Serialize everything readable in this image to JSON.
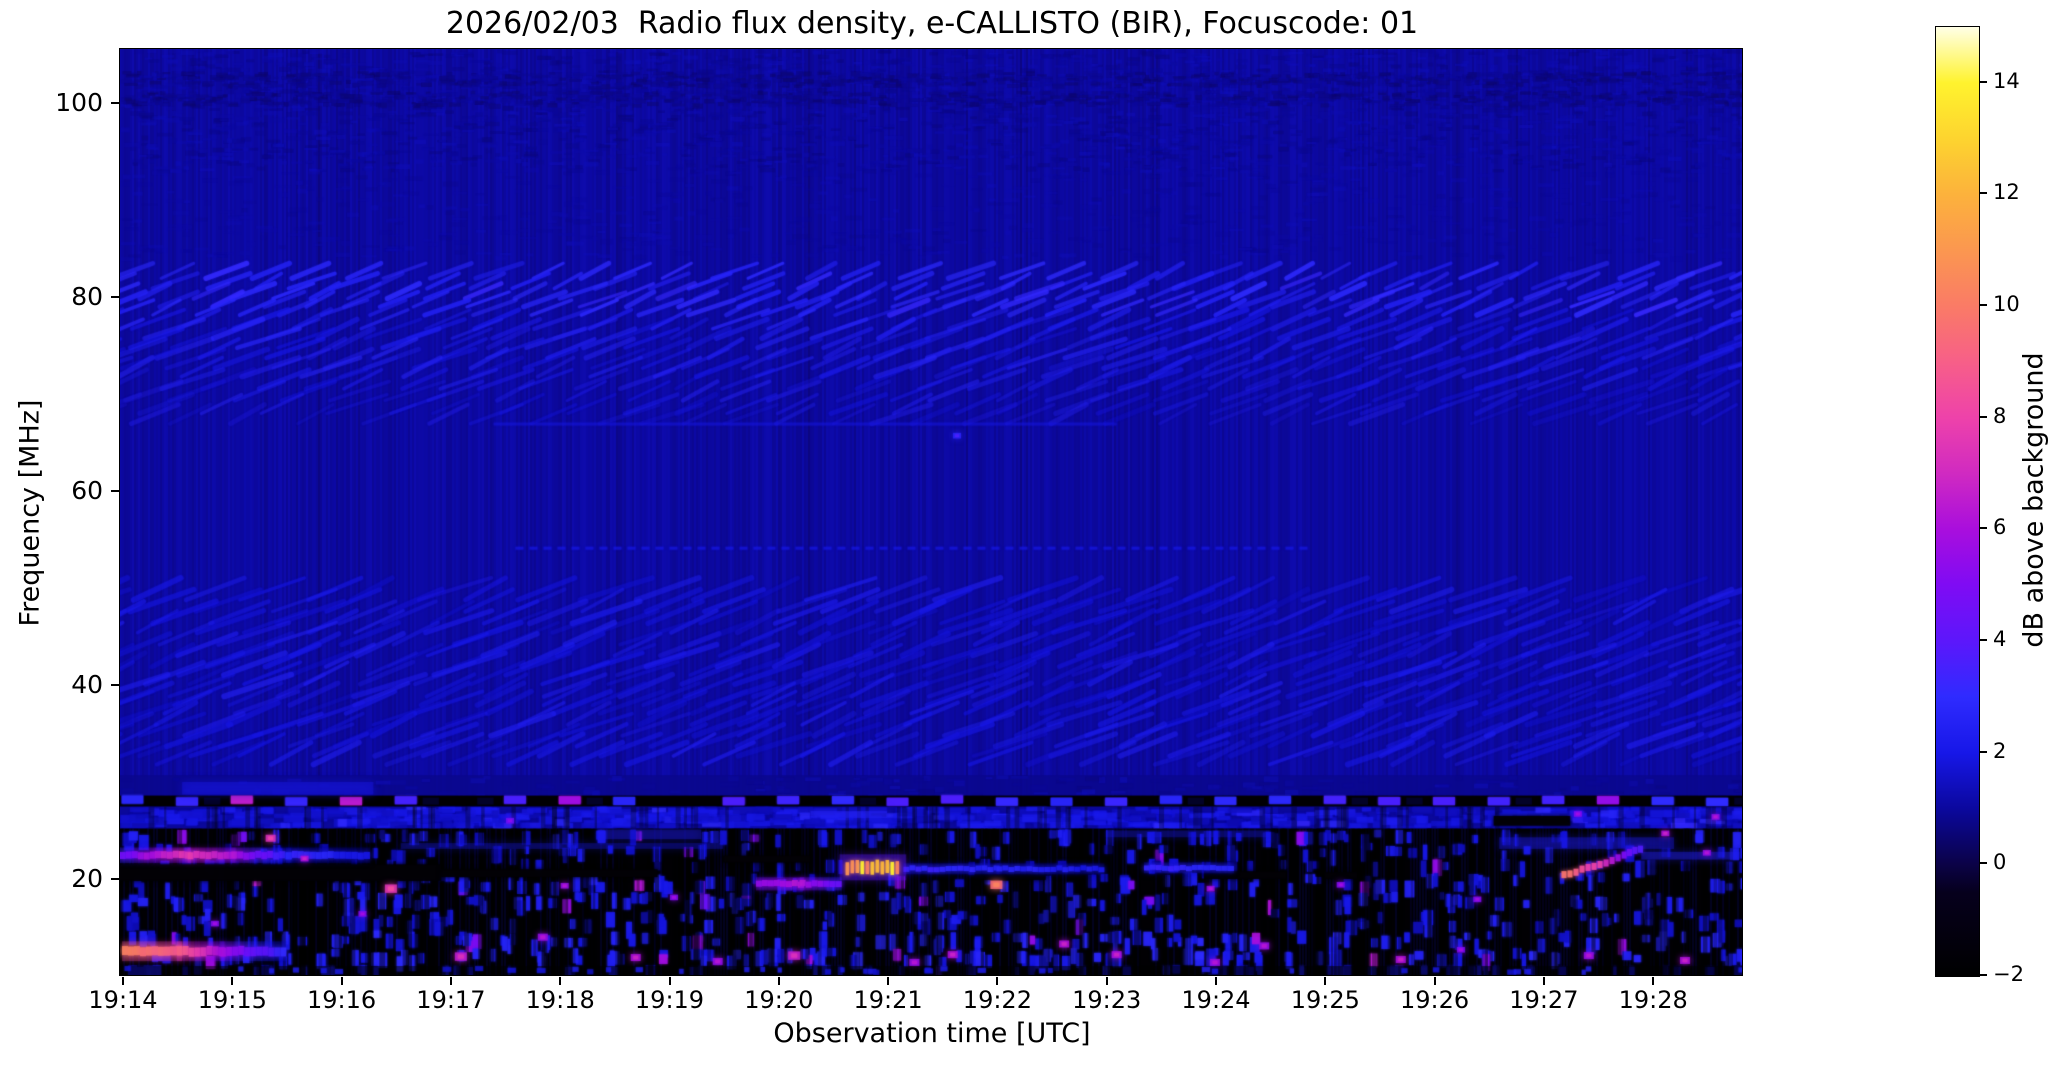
{
  "chart_data": {
    "type": "heatmap",
    "subtype": "radio-spectrogram",
    "title": "2026/02/03  Radio flux density, e-CALLISTO (BIR), Focuscode: 01",
    "xlabel": "Observation time [UTC]",
    "ylabel": "Frequency [MHz]",
    "colorbar_label": "dB above background",
    "time_tick_labels": [
      "19:14",
      "19:15",
      "19:16",
      "19:17",
      "19:18",
      "19:19",
      "19:20",
      "19:21",
      "19:22",
      "19:23",
      "19:24",
      "19:25",
      "19:26",
      "19:27",
      "19:28"
    ],
    "time_start": "19:14",
    "time_end": "19:28:50",
    "freq_ticks": [
      100,
      80,
      60,
      40,
      20
    ],
    "freq_range_mhz": [
      10,
      105.5
    ],
    "colorbar_ticks": [
      14,
      12,
      10,
      8,
      6,
      4,
      2,
      0,
      -2
    ],
    "colorbar_range_db": [
      -2,
      15
    ],
    "grid": false,
    "legend": "colorbar-right",
    "palette": [
      {
        "v": -2.0,
        "c": "#000000"
      },
      {
        "v": -0.5,
        "c": "#06001d"
      },
      {
        "v": 0.0,
        "c": "#0b0247"
      },
      {
        "v": 1.0,
        "c": "#0b089e"
      },
      {
        "v": 2.0,
        "c": "#1717e8"
      },
      {
        "v": 3.0,
        "c": "#2f2bff"
      },
      {
        "v": 4.0,
        "c": "#5c17fb"
      },
      {
        "v": 5.0,
        "c": "#7f0bf4"
      },
      {
        "v": 6.0,
        "c": "#a90edd"
      },
      {
        "v": 7.0,
        "c": "#d02ac1"
      },
      {
        "v": 8.0,
        "c": "#ee42aa"
      },
      {
        "v": 9.0,
        "c": "#f75f88"
      },
      {
        "v": 10.0,
        "c": "#fa7b66"
      },
      {
        "v": 11.0,
        "c": "#fb9750"
      },
      {
        "v": 12.0,
        "c": "#fcb23c"
      },
      {
        "v": 13.0,
        "c": "#fdd42f"
      },
      {
        "v": 14.0,
        "c": "#fff32e"
      },
      {
        "v": 15.0,
        "c": "#ffffe6"
      }
    ],
    "background_level_db": 1.05,
    "features": {
      "top_noise_strips_mhz": [
        [
          101.8,
          103.2
        ],
        [
          99.8,
          101.2
        ]
      ],
      "diag_bands": [
        {
          "f0": 77.6,
          "f1": 82.6,
          "db": 2.8,
          "alpha": 0.5,
          "len": 36,
          "rise": 15,
          "lw": 4.0,
          "spacing": 46,
          "fade": false
        },
        {
          "f0": 67.5,
          "f1": 77.6,
          "db": 2.4,
          "alpha": 0.38,
          "len": 48,
          "rise": 19,
          "lw": 4.2,
          "spacing": 54,
          "fade": true
        },
        {
          "f0": 32.5,
          "f1": 49.8,
          "db": 2.1,
          "alpha": 0.3,
          "len": 56,
          "rise": 22,
          "lw": 4.5,
          "spacing": 60,
          "fade": false
        }
      ],
      "hlines": [
        {
          "f": 66.8,
          "t0": 3.4,
          "t1": 9.1,
          "db": 1.9,
          "dotted": false
        },
        {
          "f": 54.0,
          "t0": 3.6,
          "t1": 10.9,
          "db": 2.1,
          "dotted": true
        }
      ],
      "dark_band": {
        "f0": 28.5,
        "f1": 30.6,
        "db": 0.8
      },
      "checker_line": {
        "f0": 27.35,
        "f1": 28.5,
        "cell_minutes": 0.25,
        "db_hi": 3.0,
        "db_lo": -1.85,
        "pink_prob": 0.07,
        "pink_db": 5.5
      },
      "mottle_band": {
        "f0": 25.1,
        "f1": 27.35,
        "db": 1.6
      },
      "noise_floor": {
        "f0": 10.0,
        "f1": 25.1,
        "db": -1.85
      },
      "dash_rows": [
        {
          "f0": 23.6,
          "f1": 25.0,
          "d": 0.4,
          "db": 1.9
        },
        {
          "f0": 22.0,
          "f1": 23.6,
          "d": 0.28,
          "db": 1.7
        },
        {
          "f0": 20.8,
          "f1": 22.0,
          "d": 0.22,
          "db": 1.6
        },
        {
          "f0": 18.6,
          "f1": 20.6,
          "d": 0.45,
          "db": 1.9
        },
        {
          "f0": 16.8,
          "f1": 18.6,
          "d": 0.5,
          "db": 2.1
        },
        {
          "f0": 14.6,
          "f1": 16.8,
          "d": 0.45,
          "db": 1.9
        },
        {
          "f0": 12.8,
          "f1": 14.6,
          "d": 0.52,
          "db": 2.2
        },
        {
          "f0": 11.0,
          "f1": 12.8,
          "d": 0.55,
          "db": 2.3
        },
        {
          "f0": 10.0,
          "f1": 11.0,
          "d": 0.3,
          "db": 1.6
        }
      ],
      "patches": [
        {
          "t0": 0.55,
          "t1": 2.3,
          "f0": 28.6,
          "f1": 29.9,
          "db": 1.8,
          "alpha": 0.5
        },
        {
          "t0": 2.55,
          "t1": 5.5,
          "f0": 23.0,
          "f1": 23.6,
          "db": 2.0,
          "alpha": 0.3
        },
        {
          "t0": 4.35,
          "t1": 5.3,
          "f0": 24.0,
          "f1": 25.0,
          "db": 2.2,
          "alpha": 0.35
        },
        {
          "t0": 6.3,
          "t1": 7.0,
          "f0": 26.2,
          "f1": 26.9,
          "db": 2.6,
          "alpha": 0.5
        },
        {
          "t0": 9.0,
          "t1": 10.5,
          "f0": 24.2,
          "f1": 24.9,
          "db": 2.0,
          "alpha": 0.3
        },
        {
          "t0": 12.6,
          "t1": 14.2,
          "f0": 23.0,
          "f1": 24.2,
          "db": 2.2,
          "alpha": 0.35
        },
        {
          "t0": 13.9,
          "t1": 14.8,
          "f0": 21.9,
          "f1": 22.7,
          "db": 2.4,
          "alpha": 0.4
        }
      ],
      "blackouts": [
        {
          "t0": -0.02,
          "t1": 2.92,
          "f0": 19.7,
          "f1": 21.4
        },
        {
          "t0": 2.92,
          "t1": 4.9,
          "f0": 20.1,
          "f1": 20.9
        },
        {
          "t0": 5.5,
          "t1": 6.3,
          "f0": 21.6,
          "f1": 22.3
        },
        {
          "t0": 7.8,
          "t1": 8.45,
          "f0": 19.8,
          "f1": 20.9
        },
        {
          "t0": 9.9,
          "t1": 10.65,
          "f0": 19.9,
          "f1": 20.7
        },
        {
          "t0": 11.0,
          "t1": 11.3,
          "f0": 19.9,
          "f1": 20.6
        },
        {
          "t0": 12.55,
          "t1": 13.25,
          "f0": 25.4,
          "f1": 26.4
        }
      ],
      "glow_lines": [
        {
          "f": 22.35,
          "h": 7,
          "stops": [
            [
              -0.02,
              4.5
            ],
            [
              0.3,
              6.5
            ],
            [
              0.6,
              7.8
            ],
            [
              1.0,
              6.2
            ],
            [
              1.5,
              3.0
            ],
            [
              2.25,
              2.2
            ]
          ]
        },
        {
          "f": 20.95,
          "h": 5,
          "stops": [
            [
              7.15,
              3.2
            ],
            [
              8.0,
              2.8
            ],
            [
              8.95,
              2.2
            ]
          ]
        },
        {
          "f": 21.05,
          "h": 5,
          "stops": [
            [
              9.35,
              3.2
            ],
            [
              10.15,
              2.6
            ]
          ]
        },
        {
          "f": 19.4,
          "h": 6,
          "stops": [
            [
              5.8,
              5.8
            ],
            [
              6.2,
              6.3
            ],
            [
              6.55,
              4.0
            ]
          ]
        },
        {
          "f": 12.45,
          "h": 9,
          "stops": [
            [
              0.0,
              10.2
            ],
            [
              0.5,
              9.0
            ],
            [
              0.9,
              6.0
            ],
            [
              1.45,
              3.0
            ]
          ]
        }
      ],
      "burst": {
        "t0": 6.62,
        "t1": 7.12,
        "f": 21.1,
        "h": 13,
        "db": 13.2
      },
      "riser": {
        "pts": [
          [
            13.17,
            20.6
          ],
          [
            13.5,
            21.8
          ],
          [
            13.72,
            22.8
          ],
          [
            13.92,
            23.6
          ]
        ],
        "dbs": [
          9.8,
          7.6,
          5.0,
          3.2
        ]
      },
      "blobs": [
        [
          1.36,
          24.1,
          7.2,
          5
        ],
        [
          1.67,
          22.0,
          6.0,
          4
        ],
        [
          2.46,
          18.9,
          7.5,
          6
        ],
        [
          8.0,
          19.3,
          9.5,
          6
        ],
        [
          14.12,
          24.6,
          6.0,
          4
        ],
        [
          4.7,
          11.8,
          6.0,
          5
        ],
        [
          5.45,
          11.4,
          5.5,
          5
        ],
        [
          6.15,
          12.0,
          6.5,
          6
        ],
        [
          7.25,
          11.3,
          5.5,
          5
        ],
        [
          9.1,
          12.1,
          6.0,
          5
        ],
        [
          10.45,
          13.0,
          5.5,
          5
        ],
        [
          11.7,
          11.6,
          6.0,
          5
        ],
        [
          12.25,
          12.6,
          5.0,
          4
        ],
        [
          13.42,
          12.0,
          5.5,
          5
        ],
        [
          14.3,
          11.5,
          6.0,
          5
        ],
        [
          12.4,
          17.8,
          5.0,
          4
        ],
        [
          9.96,
          18.9,
          5.5,
          4
        ],
        [
          11.15,
          19.3,
          5.0,
          4
        ],
        [
          14.5,
          22.6,
          5.5,
          4
        ],
        [
          13.32,
          26.6,
          5.0,
          4
        ],
        [
          14.58,
          26.3,
          5.5,
          4
        ],
        [
          2.2,
          16.3,
          5.0,
          4
        ],
        [
          3.85,
          13.9,
          5.5,
          5
        ],
        [
          8.62,
          13.2,
          6.0,
          5
        ],
        [
          5.05,
          18.0,
          5.0,
          4
        ],
        [
          3.1,
          11.9,
          6.5,
          6
        ],
        [
          0.85,
          15.3,
          5.0,
          4
        ],
        [
          4.05,
          19.2,
          5.5,
          4
        ],
        [
          7.6,
          12.1,
          6.0,
          5
        ],
        [
          10.0,
          11.3,
          5.5,
          5
        ],
        [
          3.55,
          25.9,
          4.5,
          4
        ],
        [
          7.64,
          65.6,
          2.8,
          4
        ]
      ]
    }
  }
}
